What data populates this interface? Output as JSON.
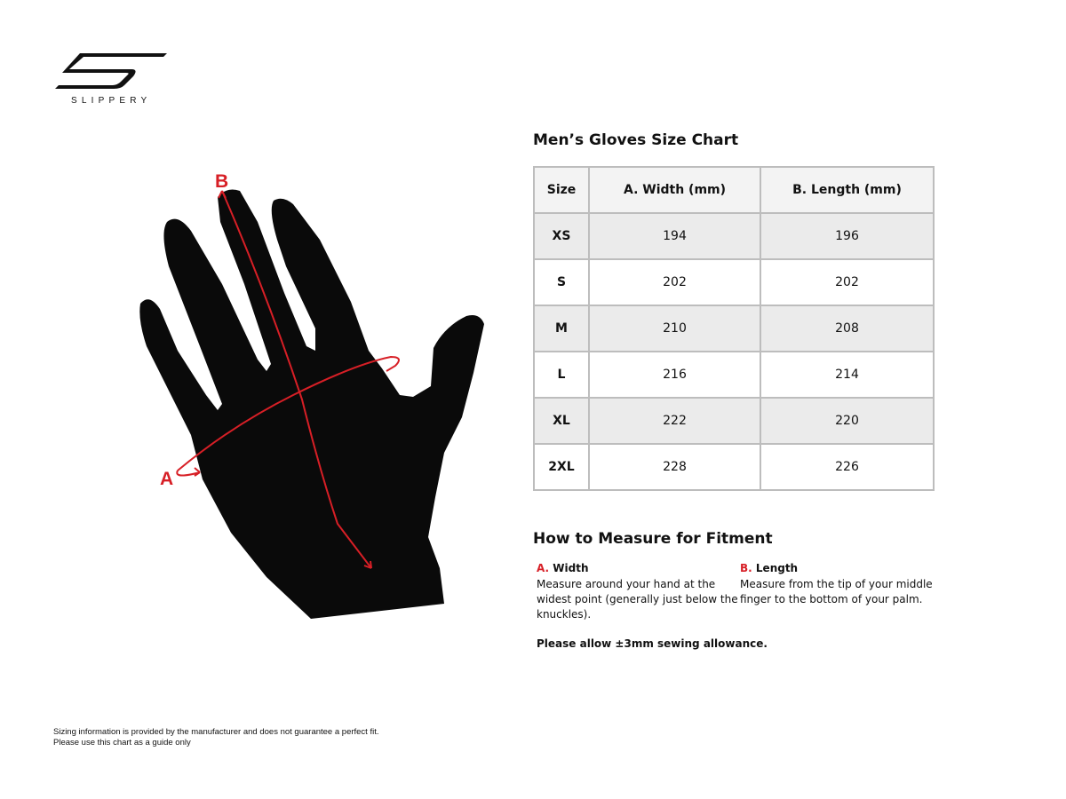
{
  "brand": {
    "name": "SLIPPERY"
  },
  "diagram": {
    "label_a": "A",
    "label_b": "B",
    "accent_color": "#d71f26"
  },
  "chart": {
    "title": "Men’s Gloves Size Chart",
    "headers": [
      "Size",
      "A. Width (mm)",
      "B. Length (mm)"
    ],
    "rows": [
      [
        "XS",
        "194",
        "196"
      ],
      [
        "S",
        "202",
        "202"
      ],
      [
        "M",
        "210",
        "208"
      ],
      [
        "L",
        "216",
        "214"
      ],
      [
        "XL",
        "222",
        "220"
      ],
      [
        "2XL",
        "228",
        "226"
      ]
    ]
  },
  "howto": {
    "title": "How to Measure for Fitment",
    "width": {
      "letter": "A.",
      "label": "Width",
      "text": "Measure around your hand at the widest point (generally just below the knuckles)."
    },
    "length": {
      "letter": "B.",
      "label": "Length",
      "text": "Measure from the tip of your middle finger to the bottom of your palm."
    },
    "allowance": "Please allow ±3mm sewing allowance."
  },
  "disclaimer": {
    "line1": "Sizing information is provided by the manufacturer and does not guarantee a perfect fit.",
    "line2": "Please use this chart as a guide only"
  }
}
